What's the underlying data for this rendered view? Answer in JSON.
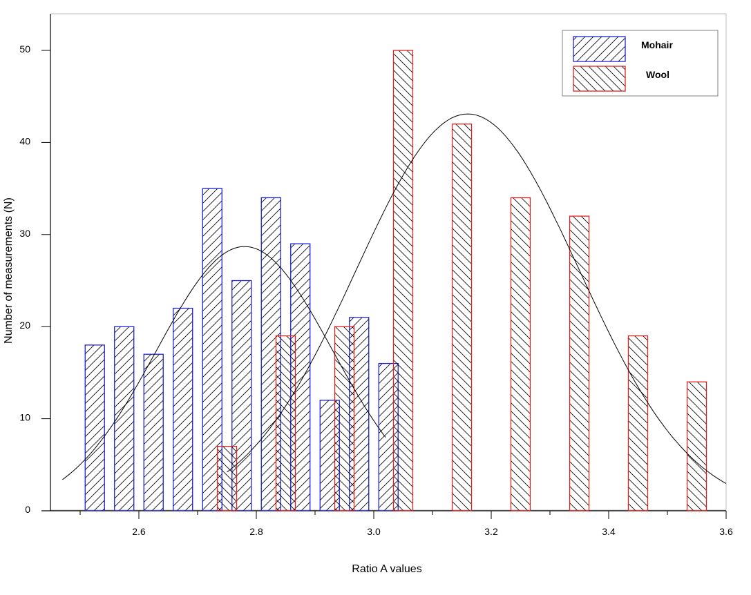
{
  "chart_data": {
    "type": "bar",
    "xlabel": "Ratio A values",
    "ylabel": "Number of measurements (N)",
    "xlim": [
      2.45,
      3.6
    ],
    "ylim": [
      0,
      54
    ],
    "x_ticks": [
      "2.6",
      "2.8",
      "3.0",
      "3.2",
      "3.4",
      "3.6"
    ],
    "y_ticks": [
      "0",
      "10",
      "20",
      "30",
      "40",
      "50"
    ],
    "grid": false,
    "legend_position": "top-right",
    "series": [
      {
        "name": "Mohair",
        "color": "#1f1fd0",
        "hatch": "forward",
        "x": [
          2.525,
          2.575,
          2.625,
          2.675,
          2.725,
          2.775,
          2.825,
          2.875,
          2.925,
          2.975,
          3.025
        ],
        "values": [
          18,
          20,
          17,
          22,
          35,
          25,
          34,
          29,
          12,
          21,
          16
        ]
      },
      {
        "name": "Wool",
        "color": "#e02020",
        "hatch": "backward",
        "x": [
          2.75,
          2.85,
          2.95,
          3.05,
          3.15,
          3.25,
          3.35,
          3.45,
          3.55
        ],
        "values": [
          7,
          19,
          20,
          50,
          42,
          34,
          32,
          19,
          14
        ]
      }
    ],
    "fit_curves": [
      {
        "series": "Mohair",
        "type": "normal",
        "peak": 28.7,
        "mean": 2.78,
        "sd": 0.15,
        "x_range": [
          2.47,
          3.02
        ]
      },
      {
        "series": "Wool",
        "type": "normal",
        "peak": 43.1,
        "mean": 3.16,
        "sd": 0.19,
        "x_range": [
          2.75,
          3.6
        ]
      }
    ]
  }
}
